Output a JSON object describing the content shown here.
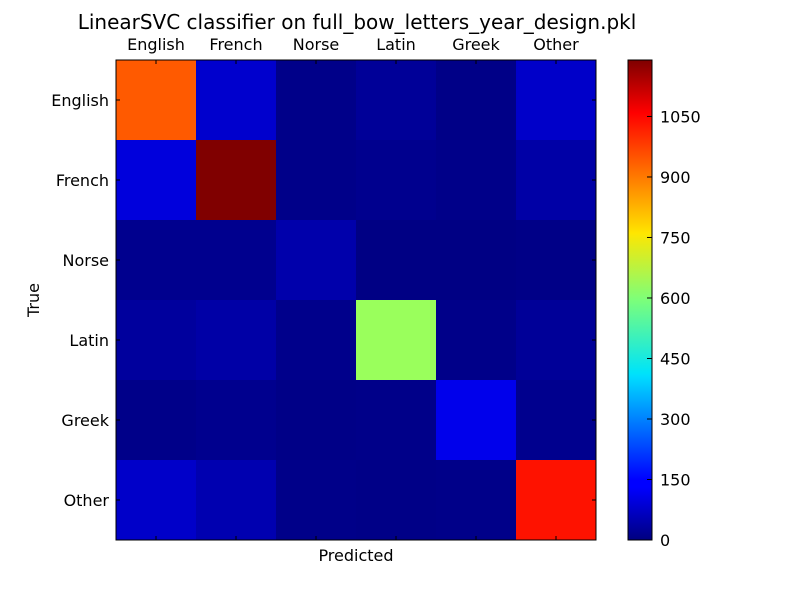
{
  "chart_data": {
    "type": "heatmap",
    "title": "LinearSVC classifier on full_bow_letters_year_design.pkl",
    "xlabel": "Predicted",
    "ylabel": "True",
    "x_categories": [
      "English",
      "French",
      "Norse",
      "Latin",
      "Greek",
      "Other"
    ],
    "y_categories": [
      "English",
      "French",
      "Norse",
      "Latin",
      "Greek",
      "Other"
    ],
    "values": [
      [
        970,
        80,
        10,
        25,
        8,
        75
      ],
      [
        95,
        1190,
        10,
        15,
        10,
        40
      ],
      [
        15,
        15,
        45,
        5,
        5,
        8
      ],
      [
        30,
        40,
        12,
        640,
        10,
        25
      ],
      [
        10,
        15,
        8,
        10,
        110,
        15
      ],
      [
        75,
        50,
        10,
        8,
        10,
        1060
      ]
    ],
    "colormap": "jet",
    "colorbar": {
      "vmin": 0,
      "vmax": 1190,
      "ticks": [
        0,
        150,
        300,
        450,
        600,
        750,
        900,
        1050
      ]
    },
    "grid": false,
    "x_ticks_position": "top"
  }
}
